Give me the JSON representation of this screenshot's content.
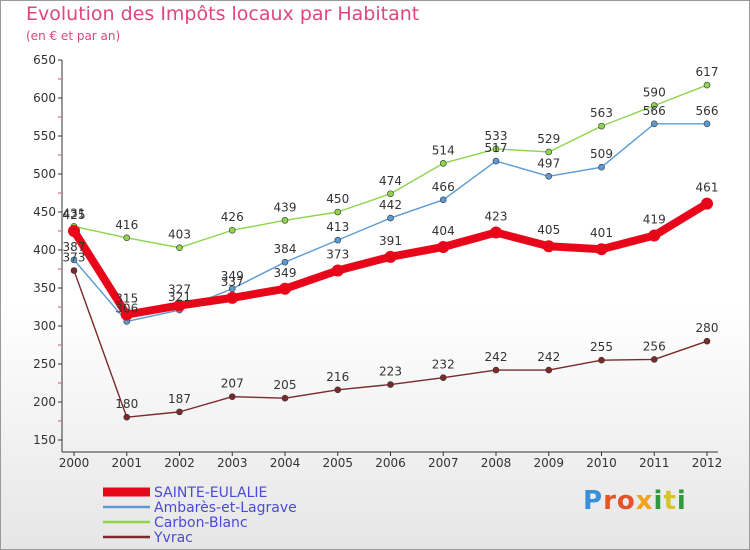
{
  "header": {
    "title": "Evolution des Impôts locaux par Habitant",
    "subtitle": "(en € et par an)"
  },
  "logo": {
    "letters": [
      "P",
      "r",
      "o",
      "x",
      "i",
      "t",
      "i"
    ],
    "colors": [
      "#3a8fd9",
      "#e5532a",
      "#e5532a",
      "#f2a31b",
      "#2e9a3e",
      "#d7c42a",
      "#2e9a3e"
    ]
  },
  "chart_data": {
    "type": "line",
    "title": "Evolution des Impôts locaux par Habitant",
    "subtitle": "(en € et par an)",
    "xlabel": "",
    "ylabel": "",
    "ylim": [
      150,
      650
    ],
    "yticks": [
      150,
      200,
      250,
      300,
      350,
      400,
      450,
      500,
      550,
      600,
      650
    ],
    "categories": [
      "2000",
      "2001",
      "2002",
      "2003",
      "2004",
      "2005",
      "2006",
      "2007",
      "2008",
      "2009",
      "2010",
      "2011",
      "2012"
    ],
    "grid": false,
    "legend_position": "bottom-left",
    "series": [
      {
        "name": "SAINTE-EULALIE",
        "color": "#e8071a",
        "values": [
          425,
          315,
          327,
          337,
          349,
          373,
          391,
          404,
          423,
          405,
          401,
          419,
          461
        ]
      },
      {
        "name": "Ambarès-et-Lagrave",
        "color": "#5b9bd5",
        "values": [
          387,
          306,
          321,
          349,
          384,
          413,
          442,
          466,
          517,
          497,
          509,
          566,
          566
        ]
      },
      {
        "name": "Carbon-Blanc",
        "color": "#8fd44c",
        "values": [
          431,
          416,
          403,
          426,
          439,
          450,
          474,
          514,
          533,
          529,
          563,
          590,
          617
        ]
      },
      {
        "name": "Yvrac",
        "color": "#7a2a2a",
        "values": [
          373,
          180,
          187,
          207,
          205,
          216,
          223,
          232,
          242,
          242,
          255,
          256,
          280
        ]
      }
    ]
  }
}
